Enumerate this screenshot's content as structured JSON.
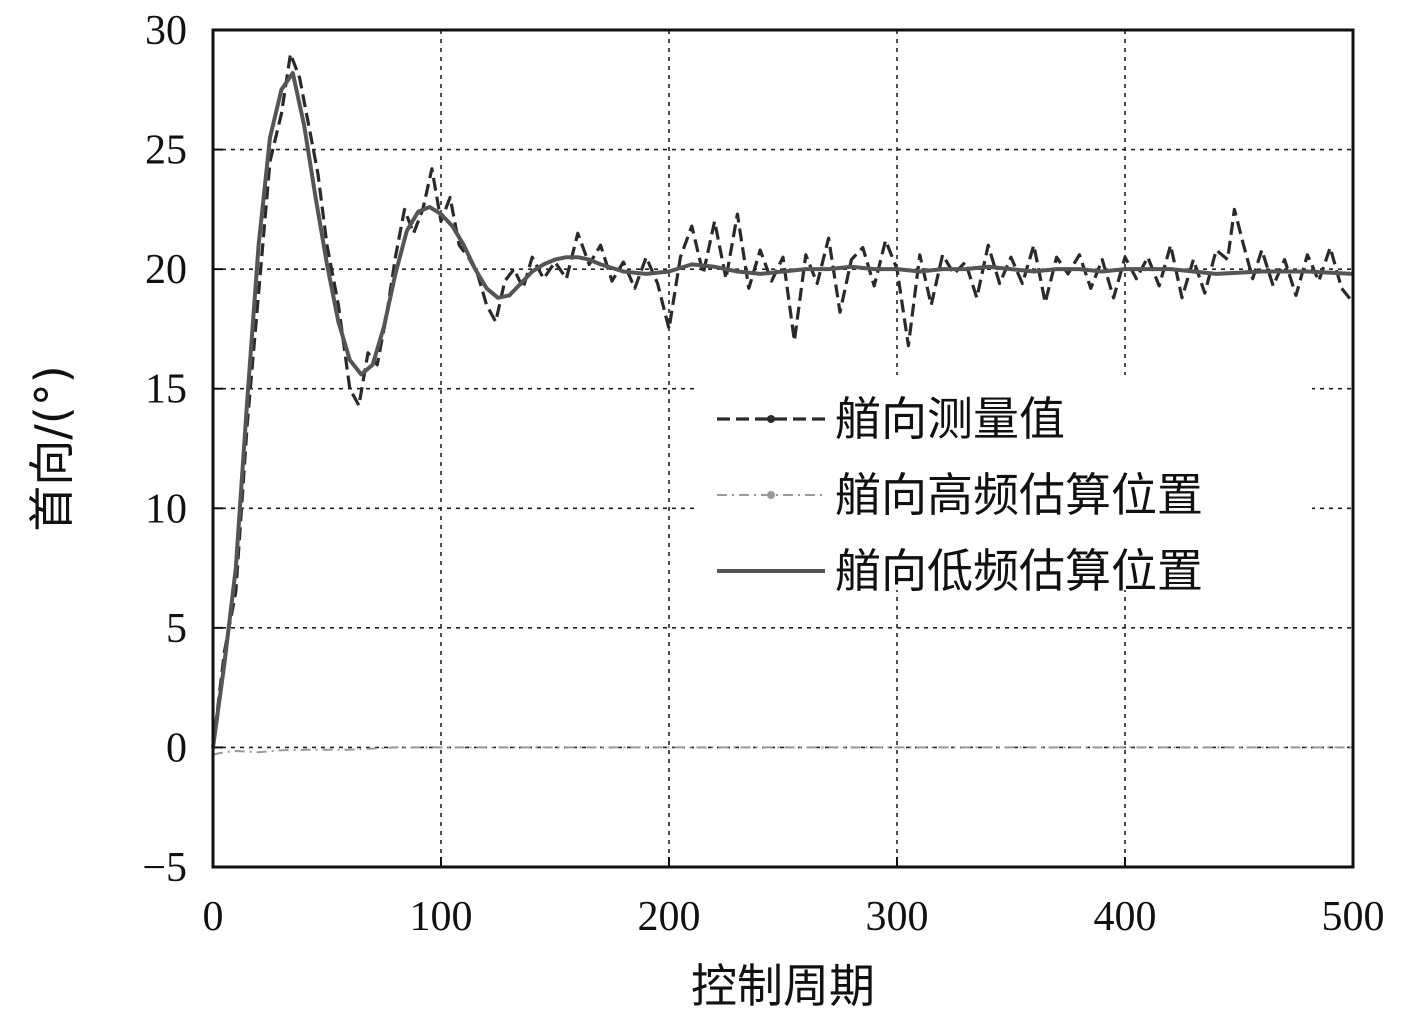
{
  "chart_data": {
    "type": "line",
    "title": "",
    "xlabel": "控制周期",
    "ylabel": "首向/(°)",
    "xlim": [
      0,
      500
    ],
    "ylim": [
      -5,
      30
    ],
    "xticks": [
      0,
      100,
      200,
      300,
      400,
      500
    ],
    "xtick_labels": [
      "0",
      "100",
      "200",
      "300",
      "400",
      "500"
    ],
    "yticks": [
      -5,
      0,
      5,
      10,
      15,
      20,
      25,
      30
    ],
    "ytick_labels": [
      "−5",
      "0",
      "5",
      "10",
      "15",
      "20",
      "25",
      "30"
    ],
    "grid": true,
    "legend_position": "center-right",
    "series": [
      {
        "name": "艏向测量值",
        "style": "dashed-dot-marker",
        "color": "#2a2a2a",
        "x": [
          0,
          5,
          10,
          15,
          20,
          25,
          30,
          34,
          38,
          42,
          46,
          50,
          55,
          60,
          64,
          68,
          72,
          76,
          80,
          84,
          88,
          92,
          96,
          100,
          104,
          108,
          112,
          116,
          120,
          124,
          128,
          132,
          136,
          140,
          145,
          150,
          155,
          160,
          165,
          170,
          175,
          180,
          185,
          190,
          195,
          200,
          205,
          210,
          215,
          220,
          225,
          230,
          235,
          240,
          245,
          250,
          255,
          260,
          265,
          270,
          275,
          280,
          285,
          290,
          295,
          300,
          305,
          310,
          315,
          320,
          325,
          330,
          335,
          340,
          345,
          350,
          355,
          360,
          365,
          370,
          375,
          380,
          385,
          390,
          395,
          400,
          405,
          410,
          415,
          420,
          425,
          430,
          435,
          440,
          445,
          448,
          452,
          456,
          460,
          465,
          470,
          475,
          480,
          485,
          490,
          495,
          500
        ],
        "y": [
          0,
          4.0,
          6.5,
          13.5,
          19.0,
          24.5,
          26.5,
          29.0,
          28.0,
          26.0,
          24.0,
          21.0,
          18.5,
          15.0,
          14.3,
          16.5,
          16.0,
          18.0,
          20.5,
          22.5,
          21.5,
          22.5,
          24.2,
          22.0,
          23.0,
          21.0,
          20.5,
          19.8,
          18.5,
          17.8,
          19.5,
          20.0,
          19.2,
          20.5,
          19.6,
          20.3,
          19.6,
          21.5,
          20.2,
          21.0,
          19.5,
          20.3,
          19.2,
          20.5,
          19.4,
          17.5,
          20.5,
          21.8,
          19.8,
          22.0,
          19.6,
          22.3,
          19.2,
          20.8,
          19.5,
          20.5,
          17.0,
          20.6,
          19.4,
          21.3,
          18.2,
          20.4,
          20.9,
          19.3,
          21.2,
          20.0,
          16.8,
          20.6,
          18.5,
          20.6,
          19.8,
          20.3,
          18.8,
          21.0,
          19.4,
          20.5,
          19.4,
          21.0,
          18.6,
          20.5,
          19.8,
          20.6,
          19.2,
          20.4,
          18.8,
          20.5,
          19.6,
          20.5,
          19.3,
          21.0,
          18.8,
          20.4,
          19.0,
          20.8,
          20.4,
          22.5,
          21.0,
          19.6,
          20.8,
          19.3,
          20.4,
          18.9,
          20.6,
          19.5,
          20.9,
          19.2,
          18.6
        ]
      },
      {
        "name": "艏向高频估算位置",
        "style": "dash-dot-marker",
        "color": "#9a9a9a",
        "x": [
          0,
          5,
          10,
          20,
          30,
          40,
          60,
          80,
          100,
          150,
          200,
          250,
          300,
          350,
          400,
          450,
          500
        ],
        "y": [
          -0.3,
          -0.2,
          -0.15,
          -0.2,
          -0.12,
          -0.1,
          -0.1,
          0,
          0,
          0,
          0,
          0,
          0,
          0,
          0,
          0,
          0
        ]
      },
      {
        "name": "艏向低频估算位置",
        "style": "solid",
        "color": "#555555",
        "x": [
          0,
          5,
          10,
          15,
          20,
          25,
          30,
          35,
          40,
          45,
          50,
          55,
          60,
          65,
          70,
          75,
          80,
          85,
          90,
          95,
          100,
          105,
          110,
          115,
          120,
          125,
          130,
          135,
          140,
          145,
          150,
          155,
          160,
          165,
          170,
          180,
          190,
          200,
          210,
          220,
          230,
          240,
          250,
          260,
          270,
          280,
          290,
          300,
          310,
          320,
          330,
          340,
          350,
          360,
          370,
          380,
          390,
          400,
          420,
          440,
          460,
          480,
          500
        ],
        "y": [
          0,
          3.5,
          7.5,
          14.5,
          21.0,
          25.5,
          27.5,
          28.2,
          26.0,
          23.0,
          20.2,
          17.8,
          16.2,
          15.6,
          16.0,
          17.6,
          19.8,
          21.6,
          22.4,
          22.6,
          22.3,
          21.8,
          21.0,
          20.0,
          19.2,
          18.8,
          18.9,
          19.4,
          19.9,
          20.2,
          20.4,
          20.5,
          20.5,
          20.4,
          20.2,
          19.9,
          19.8,
          19.9,
          20.2,
          20.1,
          19.9,
          19.8,
          19.9,
          20.0,
          20.0,
          20.1,
          20.0,
          20.0,
          19.9,
          20.0,
          20.0,
          20.1,
          20.0,
          19.9,
          20.0,
          20.0,
          19.9,
          20.0,
          20.0,
          19.8,
          19.9,
          19.9,
          19.8
        ]
      }
    ]
  }
}
